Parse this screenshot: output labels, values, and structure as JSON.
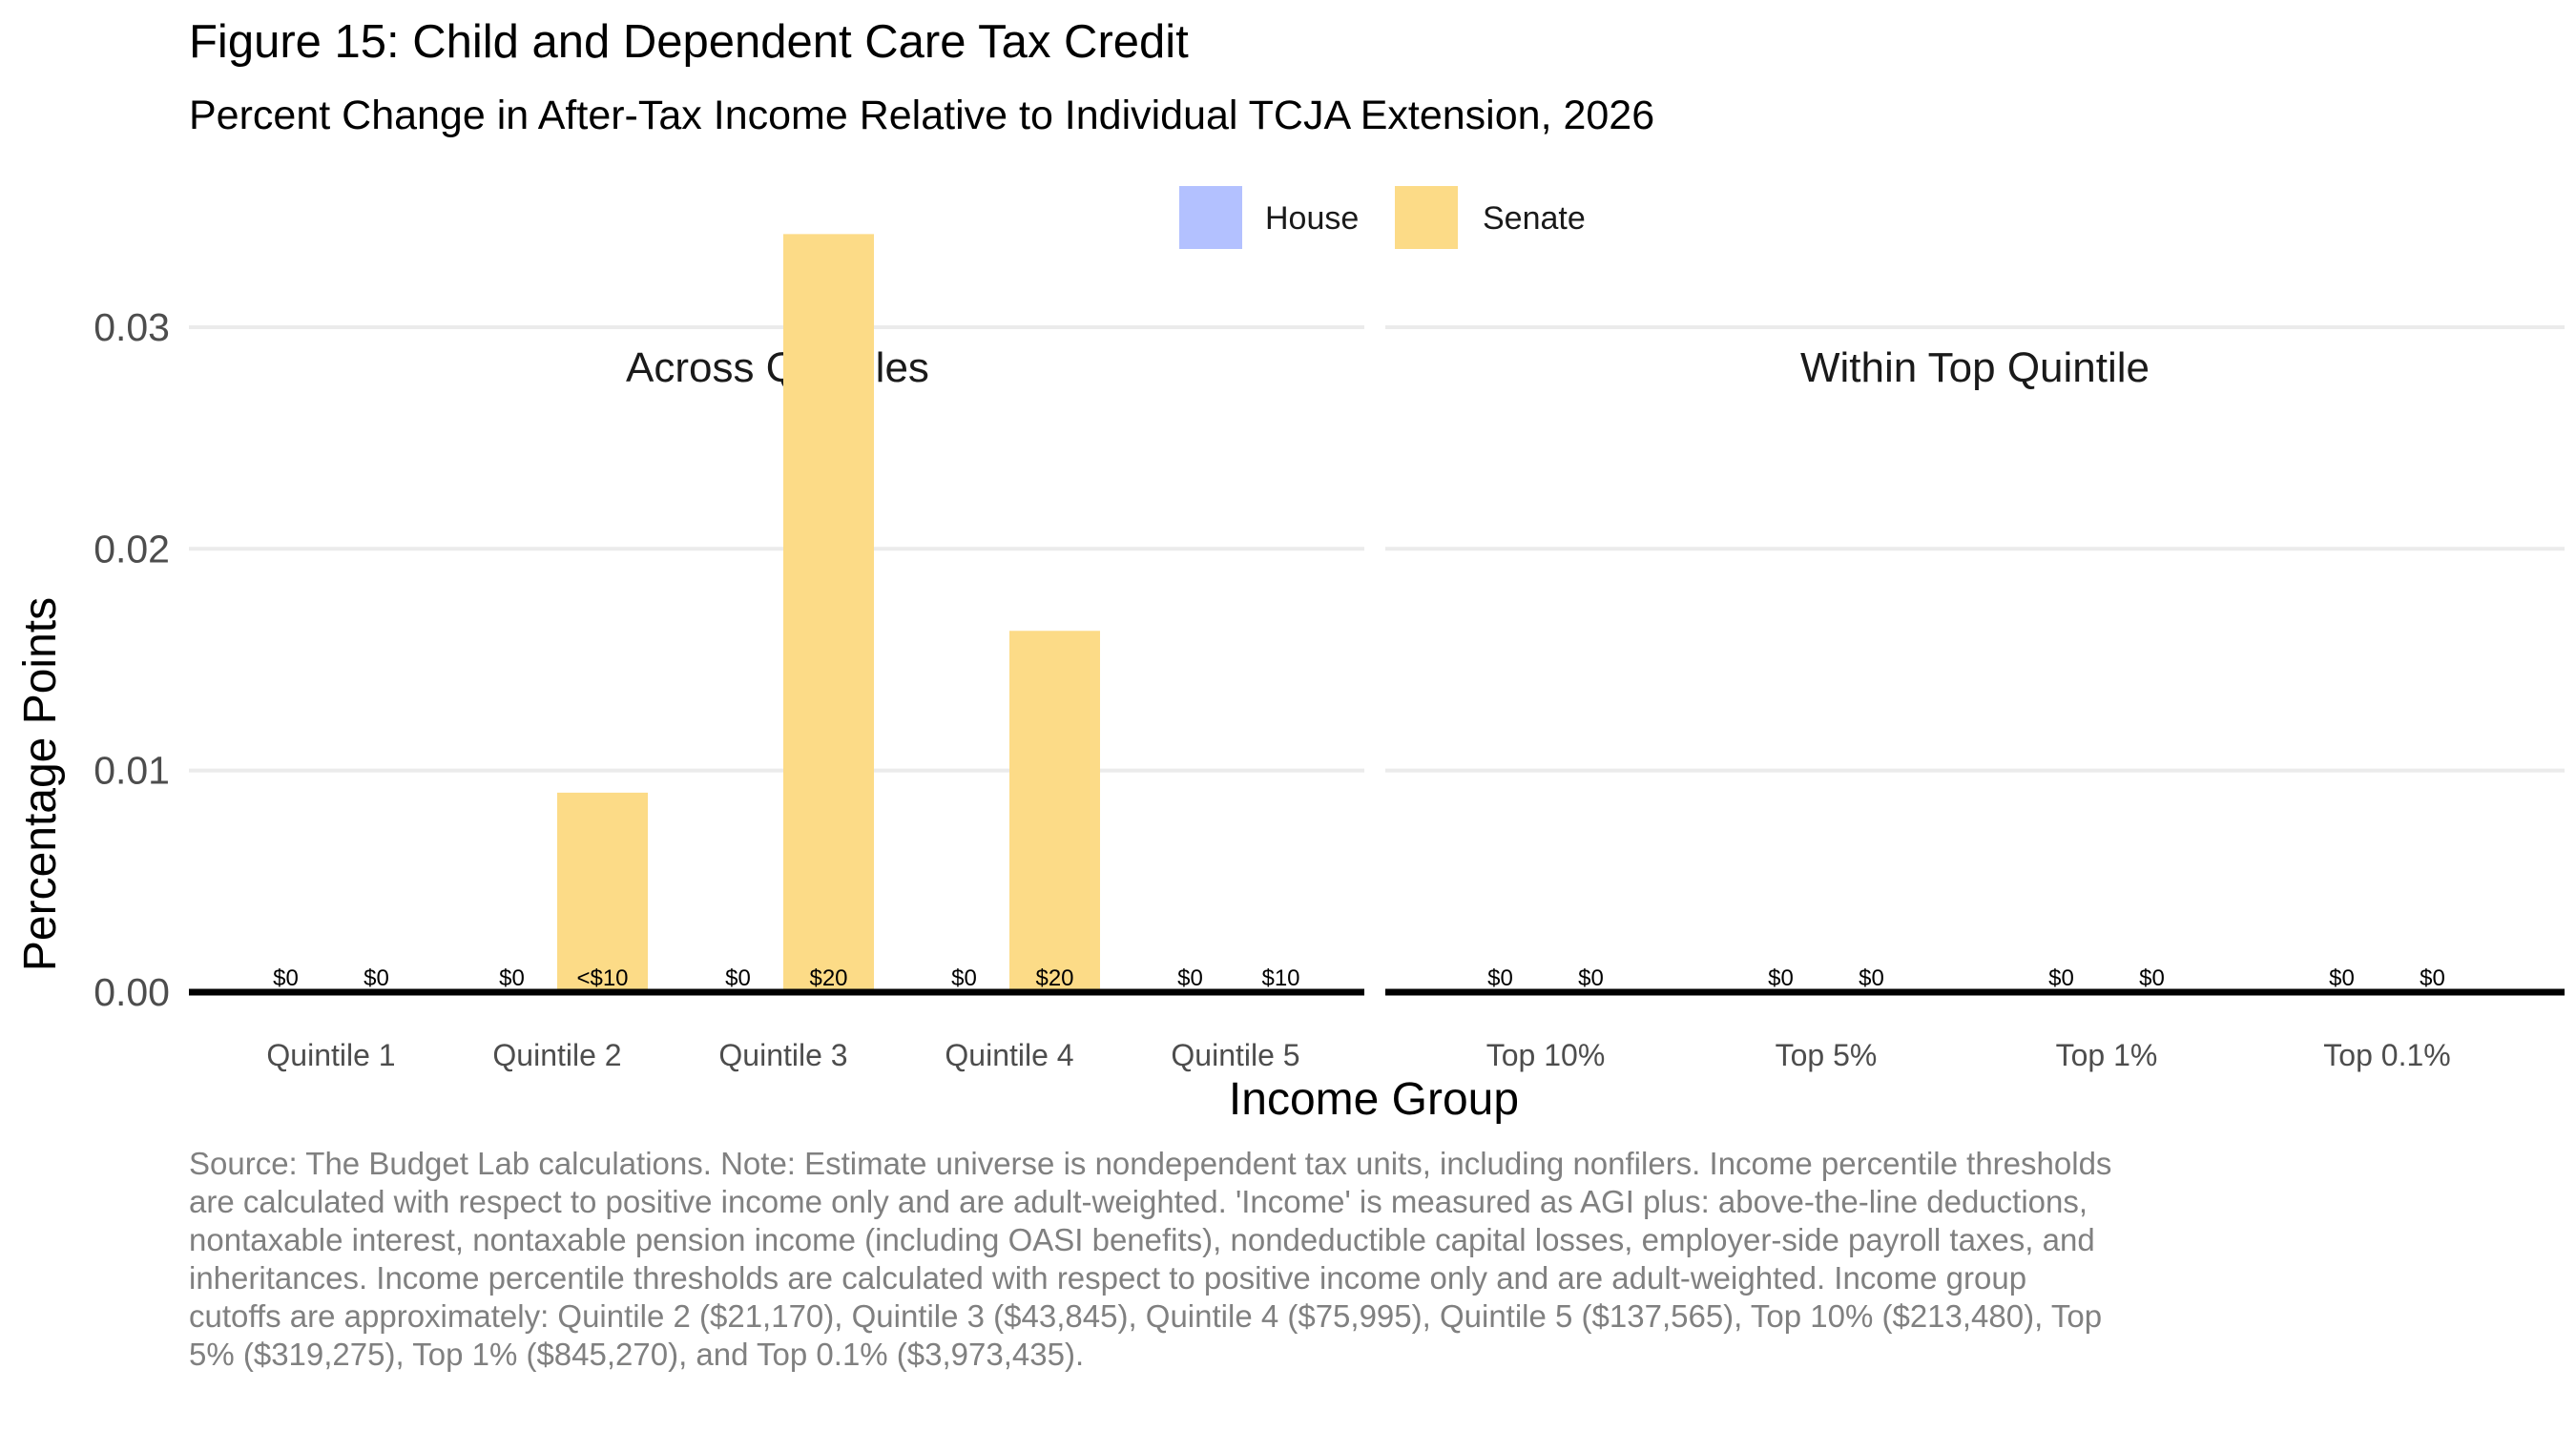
{
  "title": "Figure 15: Child and Dependent Care Tax Credit",
  "subtitle": "Percent Change in After-Tax Income Relative to Individual TCJA Extension, 2026",
  "source_note": "Source: The Budget Lab calculations. Note: Estimate universe is nondependent tax units, including nonfilers. Income percentile thresholds are calculated with respect to positive income only and are adult-weighted. 'Income' is measured as AGI plus: above-the-line deductions, nontaxable interest, nontaxable pension income (including OASI benefits), nondeductible capital losses, employer-side payroll taxes, and inheritances. Income percentile thresholds are calculated with respect to positive income only and are adult-weighted. Income group cutoffs are approximately: Quintile 2 ($21,170), Quintile 3 ($43,845), Quintile 4 ($75,995), Quintile 5 ($137,565), Top 10% ($213,480), Top 5% ($319,275), Top 1% ($845,270), and Top 0.1% ($3,973,435).",
  "colors": {
    "house": "#b3c1ff",
    "senate": "#fcdb87"
  },
  "chart_data": {
    "type": "bar",
    "xlabel": "Income Group",
    "ylabel": "Percentage Points",
    "ylim": [
      0,
      0.034
    ],
    "yticks": [
      "0.00",
      "0.01",
      "0.02",
      "0.03"
    ],
    "ytick_values": [
      0,
      0.01,
      0.02,
      0.03
    ],
    "grid": true,
    "legend": {
      "placement": "top-center",
      "entries": [
        "House",
        "Senate"
      ]
    },
    "series_names": [
      "House",
      "Senate"
    ],
    "panels": [
      {
        "title": "Across Quintiles",
        "categories": [
          "Quintile 1",
          "Quintile 2",
          "Quintile 3",
          "Quintile 4",
          "Quintile 5"
        ],
        "series": [
          {
            "name": "House",
            "values": [
              0,
              0,
              0,
              0,
              0
            ],
            "labels": [
              "$0",
              "$0",
              "$0",
              "$0",
              "$0"
            ]
          },
          {
            "name": "Senate",
            "values": [
              0,
              0.009,
              0.0342,
              0.0163,
              0
            ],
            "labels": [
              "$0",
              "<$10",
              "$20",
              "$20",
              "$10"
            ]
          }
        ]
      },
      {
        "title": "Within Top Quintile",
        "categories": [
          "Top 10%",
          "Top 5%",
          "Top 1%",
          "Top 0.1%"
        ],
        "series": [
          {
            "name": "House",
            "values": [
              0,
              0,
              0,
              0
            ],
            "labels": [
              "$0",
              "$0",
              "$0",
              "$0"
            ]
          },
          {
            "name": "Senate",
            "values": [
              0,
              0,
              0,
              0
            ],
            "labels": [
              "$0",
              "$0",
              "$0",
              "$0"
            ]
          }
        ]
      }
    ]
  }
}
